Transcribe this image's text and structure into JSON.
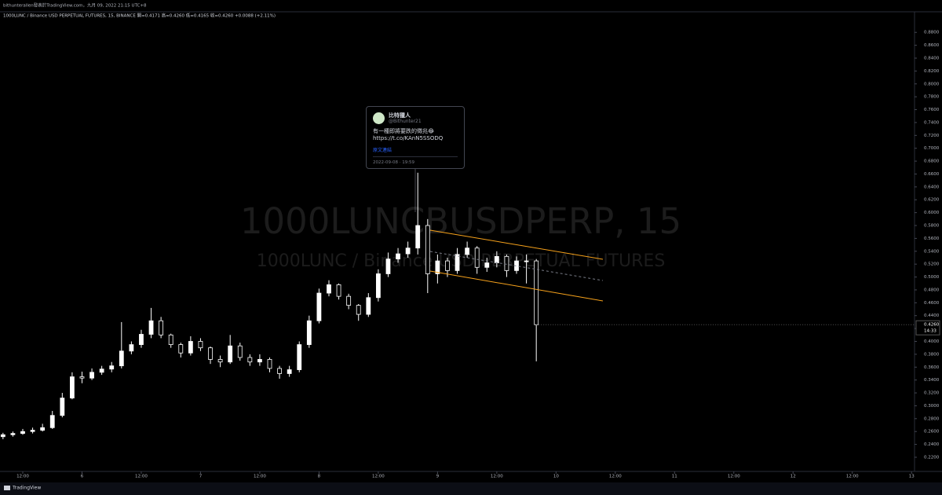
{
  "chart_data": {
    "type": "candlestick",
    "header": "bithunterallen發表於TradingView.com，九月 09, 2022 21:15 UTC+8",
    "title": "1000LUNC / Binance USD PERPETUAL FUTURES, 15, BINANCE 開=0.4171 高=0.4260 低=0.4165 收=0.4260 +0.0088 (+2.11%)",
    "watermark": {
      "symbol": "1000LUNCBUSDPERP, 15",
      "description": "1000LUNC / Binance USD PERPETUAL FUTURES"
    },
    "color": "#ffffff",
    "x": [
      8,
      10,
      12,
      14,
      16,
      18,
      20,
      22,
      24,
      26,
      28,
      30,
      32,
      34,
      36,
      38,
      40,
      42,
      44,
      46,
      48,
      50,
      52,
      54,
      56,
      58,
      60,
      62,
      64,
      66,
      68,
      70,
      72,
      74,
      76,
      78,
      80,
      82,
      84,
      86,
      88,
      90,
      92,
      94,
      96,
      98,
      100,
      102,
      104,
      106,
      108,
      110,
      112,
      114,
      116
    ],
    "open": [
      0.252,
      0.255,
      0.257,
      0.26,
      0.262,
      0.266,
      0.285,
      0.312,
      0.345,
      0.343,
      0.352,
      0.357,
      0.362,
      0.385,
      0.395,
      0.411,
      0.432,
      0.41,
      0.395,
      0.382,
      0.4,
      0.39,
      0.372,
      0.368,
      0.393,
      0.375,
      0.368,
      0.372,
      0.358,
      0.35,
      0.356,
      0.395,
      0.432,
      0.475,
      0.488,
      0.47,
      0.456,
      0.442,
      0.468,
      0.505,
      0.528,
      0.536,
      0.545,
      0.58,
      0.505,
      0.525,
      0.51,
      0.535,
      0.545,
      0.515,
      0.522,
      0.532,
      0.51,
      0.525,
      0.525
    ],
    "high": [
      0.258,
      0.26,
      0.264,
      0.266,
      0.272,
      0.292,
      0.32,
      0.352,
      0.353,
      0.358,
      0.362,
      0.368,
      0.43,
      0.4,
      0.418,
      0.452,
      0.438,
      0.412,
      0.398,
      0.408,
      0.405,
      0.392,
      0.378,
      0.41,
      0.398,
      0.38,
      0.38,
      0.375,
      0.362,
      0.362,
      0.4,
      0.44,
      0.482,
      0.495,
      0.49,
      0.474,
      0.458,
      0.475,
      0.512,
      0.538,
      0.545,
      0.555,
      0.662,
      0.59,
      0.535,
      0.53,
      0.545,
      0.555,
      0.548,
      0.53,
      0.54,
      0.535,
      0.532,
      0.535,
      0.528
    ],
    "low": [
      0.248,
      0.252,
      0.255,
      0.257,
      0.26,
      0.264,
      0.282,
      0.31,
      0.335,
      0.34,
      0.348,
      0.352,
      0.358,
      0.38,
      0.39,
      0.405,
      0.405,
      0.39,
      0.375,
      0.378,
      0.385,
      0.365,
      0.36,
      0.365,
      0.37,
      0.362,
      0.362,
      0.352,
      0.342,
      0.345,
      0.352,
      0.39,
      0.428,
      0.47,
      0.465,
      0.45,
      0.432,
      0.438,
      0.462,
      0.5,
      0.522,
      0.53,
      0.535,
      0.475,
      0.49,
      0.5,
      0.505,
      0.53,
      0.505,
      0.508,
      0.515,
      0.5,
      0.505,
      0.49,
      0.369
    ],
    "close": [
      0.255,
      0.257,
      0.26,
      0.262,
      0.266,
      0.285,
      0.312,
      0.345,
      0.343,
      0.352,
      0.357,
      0.362,
      0.385,
      0.395,
      0.411,
      0.432,
      0.41,
      0.395,
      0.382,
      0.4,
      0.39,
      0.372,
      0.368,
      0.393,
      0.375,
      0.368,
      0.372,
      0.358,
      0.35,
      0.356,
      0.395,
      0.432,
      0.475,
      0.488,
      0.47,
      0.456,
      0.442,
      0.468,
      0.505,
      0.528,
      0.536,
      0.545,
      0.58,
      0.505,
      0.525,
      0.51,
      0.535,
      0.545,
      0.515,
      0.522,
      0.532,
      0.51,
      0.525,
      0.525,
      0.426
    ],
    "xlim": [
      7.39,
      192.6
    ],
    "xticks": [
      {
        "value": 12,
        "label": "12:00"
      },
      {
        "value": 24,
        "label": "6"
      },
      {
        "value": 36,
        "label": "12:00"
      },
      {
        "value": 48,
        "label": "7"
      },
      {
        "value": 60,
        "label": "12:00"
      },
      {
        "value": 72,
        "label": "8"
      },
      {
        "value": 84,
        "label": "12:00"
      },
      {
        "value": 96,
        "label": "9"
      },
      {
        "value": 108,
        "label": "12:00"
      },
      {
        "value": 120,
        "label": "10"
      },
      {
        "value": 132,
        "label": "12:00"
      },
      {
        "value": 144,
        "label": "11"
      },
      {
        "value": 156,
        "label": "12:00"
      },
      {
        "value": 168,
        "label": "12"
      },
      {
        "value": 180,
        "label": "12:00"
      },
      {
        "value": 192,
        "label": "13"
      }
    ],
    "ylim": [
      0.198,
      0.912
    ],
    "yticks": [
      {
        "value": 0.22,
        "label": "0.2200"
      },
      {
        "value": 0.24,
        "label": "0.2400"
      },
      {
        "value": 0.26,
        "label": "0.2600"
      },
      {
        "value": 0.28,
        "label": "0.2800"
      },
      {
        "value": 0.3,
        "label": "0.3000"
      },
      {
        "value": 0.32,
        "label": "0.3200"
      },
      {
        "value": 0.34,
        "label": "0.3400"
      },
      {
        "value": 0.36,
        "label": "0.3600"
      },
      {
        "value": 0.38,
        "label": "0.3800"
      },
      {
        "value": 0.4,
        "label": "0.4000"
      },
      {
        "value": 0.42,
        "label": "0.4200"
      },
      {
        "value": 0.44,
        "label": "0.4400"
      },
      {
        "value": 0.46,
        "label": "0.4600"
      },
      {
        "value": 0.48,
        "label": "0.4800"
      },
      {
        "value": 0.5,
        "label": "0.5000"
      },
      {
        "value": 0.52,
        "label": "0.5200"
      },
      {
        "value": 0.54,
        "label": "0.5400"
      },
      {
        "value": 0.56,
        "label": "0.5600"
      },
      {
        "value": 0.58,
        "label": "0.5800"
      },
      {
        "value": 0.6,
        "label": "0.6000"
      },
      {
        "value": 0.62,
        "label": "0.6200"
      },
      {
        "value": 0.64,
        "label": "0.6400"
      },
      {
        "value": 0.66,
        "label": "0.6600"
      },
      {
        "value": 0.68,
        "label": "0.6800"
      },
      {
        "value": 0.7,
        "label": "0.7000"
      },
      {
        "value": 0.72,
        "label": "0.7200"
      },
      {
        "value": 0.74,
        "label": "0.7400"
      },
      {
        "value": 0.76,
        "label": "0.7600"
      },
      {
        "value": 0.78,
        "label": "0.7800"
      },
      {
        "value": 0.8,
        "label": "0.8000"
      },
      {
        "value": 0.82,
        "label": "0.8200"
      },
      {
        "value": 0.84,
        "label": "0.8400"
      },
      {
        "value": 0.86,
        "label": "0.8600"
      },
      {
        "value": 0.88,
        "label": "0.8800"
      }
    ],
    "last_price": {
      "value": 0.426,
      "label": "0.4260"
    },
    "countdown": "14:33",
    "tweet": {
      "name": "比特獵人",
      "handle": "@Bithunter21",
      "text": "有一種即將要跌的徵兆😂 https://t.co/KAnN5SSODQ",
      "link": "原文連結",
      "time": "2022-09-08 · 19:59"
    },
    "brand": "TradingView"
  }
}
